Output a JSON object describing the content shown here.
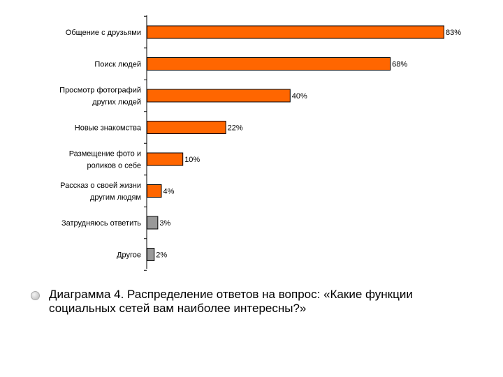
{
  "chart_data": {
    "type": "bar",
    "orientation": "horizontal",
    "categories": [
      [
        "Общение с друзьями"
      ],
      [
        "Поиск людей"
      ],
      [
        "Просмотр фотографий",
        "других людей"
      ],
      [
        "Новые знакомства"
      ],
      [
        "Размещение фото и",
        "роликов о себе"
      ],
      [
        "Рассказ о своей жизни",
        "другим людям"
      ],
      [
        "Затрудняюсь ответить"
      ],
      [
        "Другое"
      ]
    ],
    "values": [
      83,
      68,
      40,
      22,
      10,
      4,
      3,
      2
    ],
    "value_labels": [
      "83%",
      "68%",
      "40%",
      "22%",
      "10%",
      "4%",
      "3%",
      "2%"
    ],
    "bar_colors": [
      "#ff6600",
      "#ff6600",
      "#ff6600",
      "#ff6600",
      "#ff6600",
      "#ff6600",
      "#999999",
      "#999999"
    ],
    "xlim": [
      0,
      100
    ],
    "grid": false,
    "legend": "none"
  },
  "caption": {
    "text": "Диаграмма 4. Распределение ответов на вопрос: «Какие функции социальных сетей вам наиболее интересны?»"
  }
}
